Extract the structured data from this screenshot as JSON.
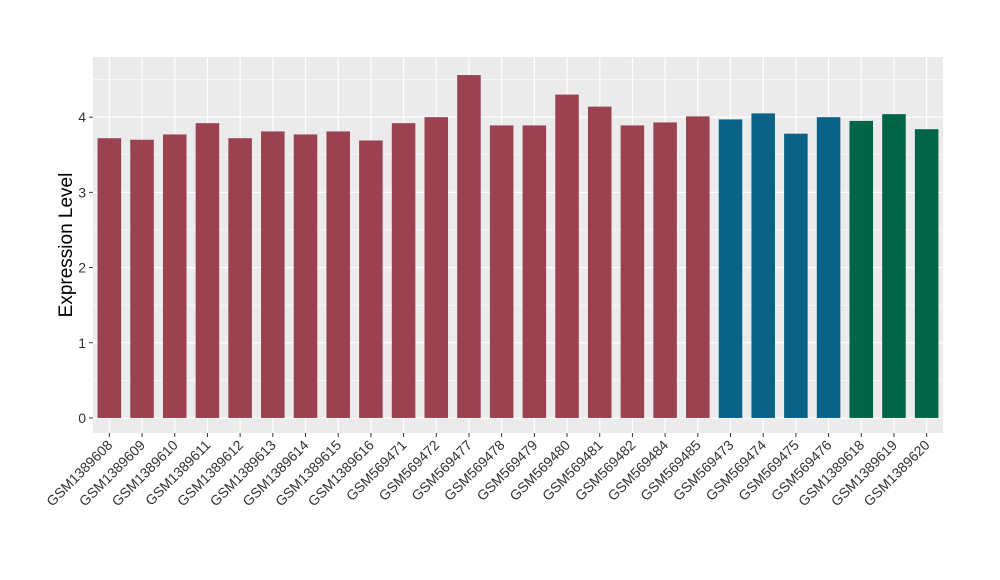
{
  "chart_data": {
    "type": "bar",
    "title": "",
    "xlabel": "",
    "ylabel": "Expression Level",
    "ylim": [
      -0.2,
      4.8
    ],
    "yticks": [
      0,
      1,
      2,
      3,
      4
    ],
    "grid": true,
    "legend": "none",
    "categories": [
      "GSM1389608",
      "GSM1389609",
      "GSM1389610",
      "GSM1389611",
      "GSM1389612",
      "GSM1389613",
      "GSM1389614",
      "GSM1389615",
      "GSM1389616",
      "GSM569471",
      "GSM569472",
      "GSM569477",
      "GSM569478",
      "GSM569479",
      "GSM569480",
      "GSM569481",
      "GSM569482",
      "GSM569484",
      "GSM569485",
      "GSM569473",
      "GSM569474",
      "GSM569475",
      "GSM569476",
      "GSM1389618",
      "GSM1389619",
      "GSM1389620"
    ],
    "values": [
      3.72,
      3.7,
      3.77,
      3.92,
      3.72,
      3.81,
      3.77,
      3.81,
      3.69,
      3.92,
      4.0,
      4.56,
      3.89,
      3.89,
      4.3,
      4.14,
      3.89,
      3.93,
      4.01,
      3.97,
      4.05,
      3.78,
      4.0,
      3.95,
      4.04,
      3.84
    ],
    "bar_colors": [
      "#9b4250",
      "#9b4250",
      "#9b4250",
      "#9b4250",
      "#9b4250",
      "#9b4250",
      "#9b4250",
      "#9b4250",
      "#9b4250",
      "#9b4250",
      "#9b4250",
      "#9b4250",
      "#9b4250",
      "#9b4250",
      "#9b4250",
      "#9b4250",
      "#9b4250",
      "#9b4250",
      "#9b4250",
      "#0a6386",
      "#0a6386",
      "#0a6386",
      "#0a6386",
      "#006446",
      "#006446",
      "#006446"
    ],
    "panel_background": "#ebebeb",
    "grid_color": "#ffffff"
  }
}
